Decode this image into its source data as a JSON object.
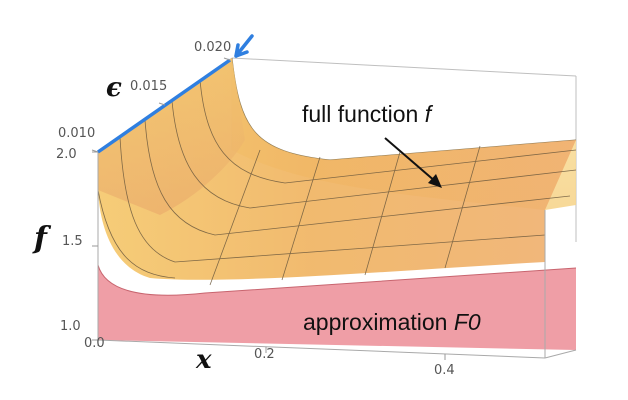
{
  "chart_data": {
    "type": "surface3d",
    "axes": {
      "x": {
        "label": "x",
        "ticks": [
          "0.0",
          "0.2",
          "0.4"
        ],
        "range": [
          0,
          0.5
        ]
      },
      "y": {
        "label": "f",
        "ticks": [
          "1.0",
          "1.5",
          "2.0"
        ],
        "range": [
          1.0,
          2.0
        ]
      },
      "depth": {
        "label": "ϵ",
        "ticks": [
          "0.010",
          "0.015",
          "0.020"
        ],
        "range": [
          0.008,
          0.02
        ]
      }
    },
    "series": [
      {
        "name": "full function f",
        "color": "#f2c46e"
      },
      {
        "name": "approximation F0",
        "color": "#eb8a92"
      }
    ],
    "annotations": [
      {
        "text": "full function ",
        "italic": "f",
        "has_arrow": true
      },
      {
        "text": "approximation ",
        "italic": "F0"
      }
    ],
    "highlight_color": "#2f7fe0",
    "box": true
  }
}
